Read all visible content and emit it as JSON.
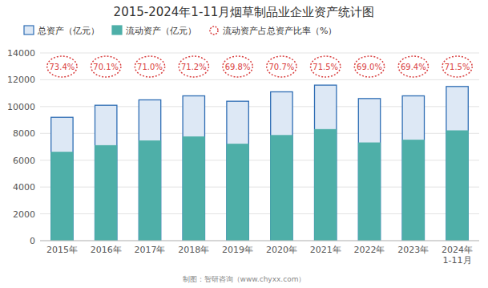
{
  "chart_data": {
    "type": "bar",
    "title": "2015-2024年1-11月烟草制品业企业资产统计图",
    "categories": [
      "2015年",
      "2016年",
      "2017年",
      "2018年",
      "2019年",
      "2020年",
      "2021年",
      "2022年",
      "2023年",
      "2024年\n1-11月"
    ],
    "series": [
      {
        "name": "总资产（亿元）",
        "color": "#dde8f5",
        "values": [
          9200,
          10100,
          10500,
          10800,
          10400,
          11100,
          11600,
          10600,
          10800,
          11500
        ]
      },
      {
        "name": "流动资产（亿元）",
        "color": "#4eafa8",
        "values": [
          6600,
          7100,
          7450,
          7750,
          7200,
          7850,
          8300,
          7300,
          7500,
          8200
        ]
      },
      {
        "name": "流动资产占总资产比率（%）",
        "type": "text",
        "marker": "circle",
        "line_style": "dotted",
        "color": "#d94040",
        "values": [
          73.4,
          70.1,
          71.0,
          71.2,
          69.8,
          70.7,
          71.5,
          69.0,
          69.4,
          71.5
        ],
        "value_labels": [
          "73.4%",
          "70.1%",
          "71.0%",
          "71.2%",
          "69.8%",
          "70.7%",
          "71.5%",
          "69.0%",
          "69.4%",
          "71.5%"
        ]
      }
    ],
    "ylim": [
      0,
      14000
    ],
    "yticks": [
      0,
      2000,
      4000,
      6000,
      8000,
      10000,
      12000,
      14000
    ],
    "grid": true,
    "legend": "top-left",
    "annotations": [
      "制图：智研咨询（www.chyxx.com）"
    ]
  }
}
